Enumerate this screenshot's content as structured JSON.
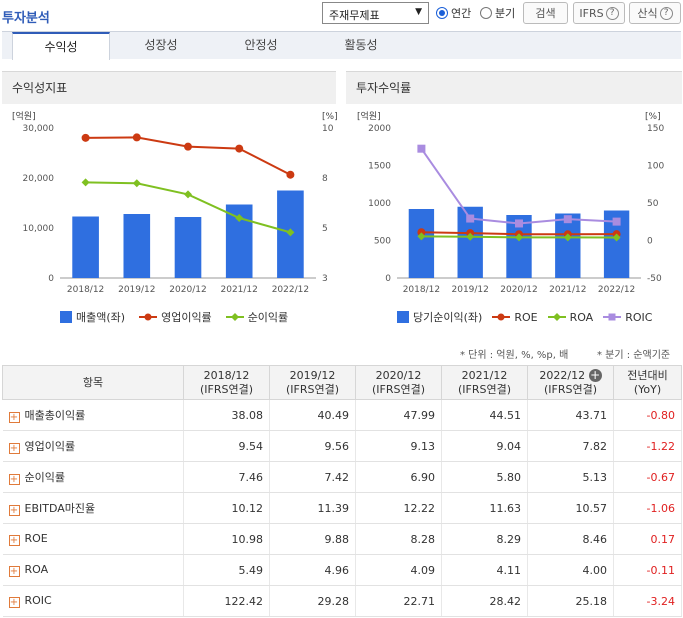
{
  "header": {
    "title": "투자분석",
    "select_value": "주재무제표",
    "radio_annual": "연간",
    "radio_quarter": "분기",
    "search_button": "검색",
    "ifrs_button": "IFRS",
    "calc_button": "산식"
  },
  "tabs": [
    "수익성",
    "성장성",
    "안정성",
    "활동성"
  ],
  "left_chart": {
    "panel_title": "수익성지표",
    "left_unit": "[억원]",
    "right_unit": "[%]",
    "left_ticks": [
      "30,000",
      "20,000",
      "10,000",
      "0"
    ],
    "right_ticks": [
      "10",
      "8",
      "5",
      "3"
    ],
    "legend": [
      "매출액(좌)",
      "영업이익률",
      "순이익률"
    ]
  },
  "right_chart": {
    "panel_title": "투자수익률",
    "left_unit": "[억원]",
    "right_unit": "[%]",
    "left_ticks": [
      "2000",
      "1500",
      "1000",
      "500",
      "0"
    ],
    "right_ticks": [
      "150",
      "100",
      "50",
      "0",
      "-50"
    ],
    "legend": [
      "당기순이익(좌)",
      "ROE",
      "ROA",
      "ROIC"
    ]
  },
  "chart_data": [
    {
      "type": "bar",
      "categories": [
        "2018/12",
        "2019/12",
        "2020/12",
        "2021/12",
        "2022/12"
      ],
      "series": [
        {
          "name": "매출액(좌)",
          "type": "bar",
          "axis": "left",
          "color": "#2f6fe0",
          "values": [
            12300,
            12800,
            12200,
            14700,
            17500
          ]
        },
        {
          "name": "영업이익률",
          "type": "line",
          "axis": "right",
          "color": "#cc3a12",
          "values": [
            9.54,
            9.56,
            9.13,
            9.04,
            7.82
          ]
        },
        {
          "name": "순이익률",
          "type": "line",
          "axis": "right",
          "color": "#7fc021",
          "values": [
            7.46,
            7.42,
            6.9,
            5.8,
            5.13
          ]
        }
      ],
      "ylim_left": [
        0,
        30000
      ],
      "ylim_right": [
        3,
        10
      ]
    },
    {
      "type": "bar",
      "categories": [
        "2018/12",
        "2019/12",
        "2020/12",
        "2021/12",
        "2022/12"
      ],
      "series": [
        {
          "name": "당기순이익(좌)",
          "type": "bar",
          "axis": "left",
          "color": "#2f6fe0",
          "values": [
            920,
            950,
            840,
            860,
            900
          ]
        },
        {
          "name": "ROE",
          "type": "line",
          "axis": "right",
          "color": "#cc3a12",
          "values": [
            10.98,
            9.88,
            8.28,
            8.29,
            8.46
          ]
        },
        {
          "name": "ROA",
          "type": "line",
          "axis": "right",
          "color": "#7fc021",
          "values": [
            5.49,
            4.96,
            4.09,
            4.11,
            4.0
          ]
        },
        {
          "name": "ROIC",
          "type": "line",
          "axis": "right",
          "color": "#a98ce0",
          "values": [
            122.42,
            29.28,
            22.71,
            28.42,
            25.18
          ]
        }
      ],
      "ylim_left": [
        0,
        2000
      ],
      "ylim_right": [
        -50,
        150
      ]
    }
  ],
  "notes": {
    "unit": "* 단위 : 억원, %, %p, 배",
    "quarter": "* 분기 : 순액기준"
  },
  "table": {
    "col_item": "항목",
    "periods": [
      {
        "date": "2018/12",
        "sub": "(IFRS연결)"
      },
      {
        "date": "2019/12",
        "sub": "(IFRS연결)"
      },
      {
        "date": "2020/12",
        "sub": "(IFRS연결)"
      },
      {
        "date": "2021/12",
        "sub": "(IFRS연결)"
      },
      {
        "date": "2022/12",
        "sub": "(IFRS연결)"
      }
    ],
    "col_yoy": "전년대비",
    "col_yoy_sub": "(YoY)",
    "rows": [
      {
        "name": "매출총이익률",
        "values": [
          "38.08",
          "40.49",
          "47.99",
          "44.51",
          "43.71"
        ],
        "yoy": "-0.80"
      },
      {
        "name": "영업이익률",
        "values": [
          "9.54",
          "9.56",
          "9.13",
          "9.04",
          "7.82"
        ],
        "yoy": "-1.22"
      },
      {
        "name": "순이익률",
        "values": [
          "7.46",
          "7.42",
          "6.90",
          "5.80",
          "5.13"
        ],
        "yoy": "-0.67"
      },
      {
        "name": "EBITDA마진율",
        "values": [
          "10.12",
          "11.39",
          "12.22",
          "11.63",
          "10.57"
        ],
        "yoy": "-1.06"
      },
      {
        "name": "ROE",
        "values": [
          "10.98",
          "9.88",
          "8.28",
          "8.29",
          "8.46"
        ],
        "yoy": "0.17"
      },
      {
        "name": "ROA",
        "values": [
          "5.49",
          "4.96",
          "4.09",
          "4.11",
          "4.00"
        ],
        "yoy": "-0.11"
      },
      {
        "name": "ROIC",
        "values": [
          "122.42",
          "29.28",
          "22.71",
          "28.42",
          "25.18"
        ],
        "yoy": "-3.24"
      }
    ]
  }
}
